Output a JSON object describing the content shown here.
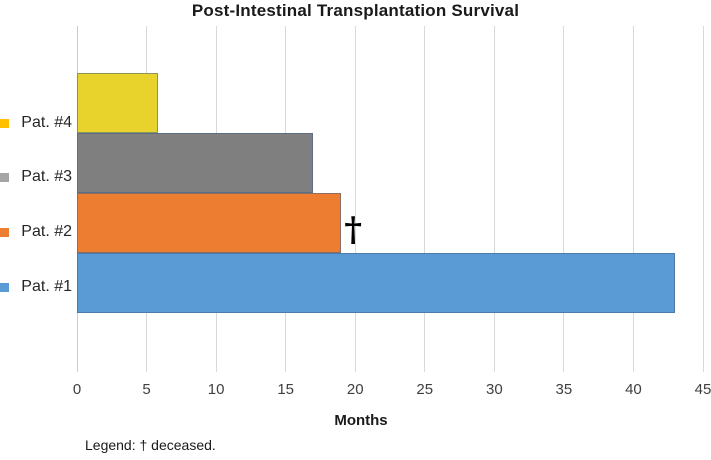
{
  "chart_data": {
    "type": "bar",
    "orientation": "horizontal",
    "title": "Post-Intestinal Transplantation Survival",
    "xlabel": "Months",
    "xlim": [
      0,
      45
    ],
    "xticks": [
      0,
      5,
      10,
      15,
      20,
      25,
      30,
      35,
      40,
      45
    ],
    "grid": "vertical-only",
    "bars": [
      {
        "label": "Pat. #4",
        "value": 5.8,
        "fill": "#e7d32c",
        "swatch": "#ffc000",
        "deceased": false
      },
      {
        "label": "Pat. #3",
        "value": 17,
        "fill": "#7f7f7f",
        "swatch": "#a5a5a5",
        "deceased": false
      },
      {
        "label": "Pat. #2",
        "value": 19,
        "fill": "#ed7d31",
        "swatch": "#ed7d31",
        "deceased": true
      },
      {
        "label": "Pat. #1",
        "value": 43,
        "fill": "#5b9bd5",
        "swatch": "#5b9bd5",
        "deceased": false
      }
    ],
    "annotation": {
      "symbol": "†",
      "meaning": "deceased"
    },
    "footnote": "Legend: † deceased.",
    "colors": {
      "gridline": "#d9d9d9",
      "text": "#262626"
    }
  }
}
